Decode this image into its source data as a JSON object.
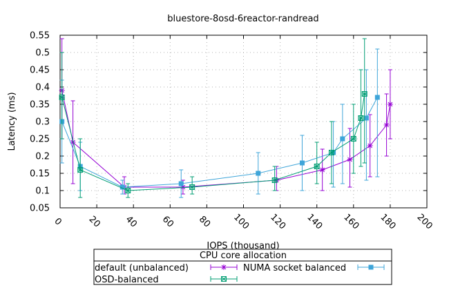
{
  "chart_data": {
    "type": "line",
    "title": "bluestore-8osd-6reactor-randread",
    "xlabel": "IOPS (thousand)",
    "ylabel": "Latency (ms)",
    "xlim": [
      0,
      200
    ],
    "ylim": [
      0.05,
      0.55
    ],
    "x_ticks": [
      0,
      20,
      40,
      60,
      80,
      100,
      120,
      140,
      160,
      180,
      200
    ],
    "y_ticks": [
      0.05,
      0.1,
      0.15,
      0.2,
      0.25,
      0.3,
      0.35,
      0.4,
      0.45,
      0.5,
      0.55
    ],
    "x_tick_labels": [
      "0",
      "20",
      "40",
      "60",
      "80",
      "100",
      "120",
      "140",
      "160",
      "180",
      "200"
    ],
    "y_tick_labels": [
      "0.05",
      "0.1",
      "0.15",
      "0.2",
      "0.25",
      "0.3",
      "0.35",
      "0.4",
      "0.45",
      "0.5",
      "0.55"
    ],
    "grid": true,
    "legend_title": "CPU core allocation",
    "legend_position": "bottom",
    "series": [
      {
        "name": "default (unbalanced)",
        "color": "#9400d3",
        "marker": "plus",
        "x": [
          1,
          7,
          35,
          67,
          118,
          143,
          158,
          169,
          178,
          180
        ],
        "y": [
          0.39,
          0.24,
          0.11,
          0.11,
          0.13,
          0.16,
          0.19,
          0.23,
          0.29,
          0.35
        ],
        "err_low": [
          0.25,
          0.12,
          0.09,
          0.09,
          0.1,
          0.1,
          0.11,
          0.14,
          0.2,
          0.25
        ],
        "err_high": [
          0.54,
          0.36,
          0.14,
          0.13,
          0.17,
          0.22,
          0.28,
          0.32,
          0.38,
          0.45
        ]
      },
      {
        "name": "NUMA socket balanced",
        "color": "#3ea5d9",
        "marker": "square",
        "x": [
          1,
          11,
          34,
          66,
          108,
          132,
          149,
          154,
          167,
          173
        ],
        "y": [
          0.3,
          0.17,
          0.11,
          0.12,
          0.15,
          0.18,
          0.21,
          0.25,
          0.31,
          0.37
        ],
        "err_low": [
          0.18,
          0.1,
          0.09,
          0.08,
          0.09,
          0.1,
          0.11,
          0.12,
          0.13,
          0.14
        ],
        "err_high": [
          0.42,
          0.24,
          0.13,
          0.16,
          0.21,
          0.26,
          0.3,
          0.35,
          0.45,
          0.51
        ]
      },
      {
        "name": "OSD-balanced",
        "color": "#009e73",
        "marker": "circle-star",
        "x": [
          1,
          11,
          37,
          72,
          117,
          140,
          148,
          160,
          164,
          166
        ],
        "y": [
          0.37,
          0.16,
          0.1,
          0.11,
          0.13,
          0.17,
          0.21,
          0.25,
          0.31,
          0.38
        ],
        "err_low": [
          0.25,
          0.08,
          0.08,
          0.09,
          0.1,
          0.12,
          0.12,
          0.15,
          0.17,
          0.18
        ],
        "err_high": [
          0.5,
          0.25,
          0.12,
          0.14,
          0.17,
          0.24,
          0.3,
          0.35,
          0.45,
          0.54
        ]
      }
    ]
  }
}
